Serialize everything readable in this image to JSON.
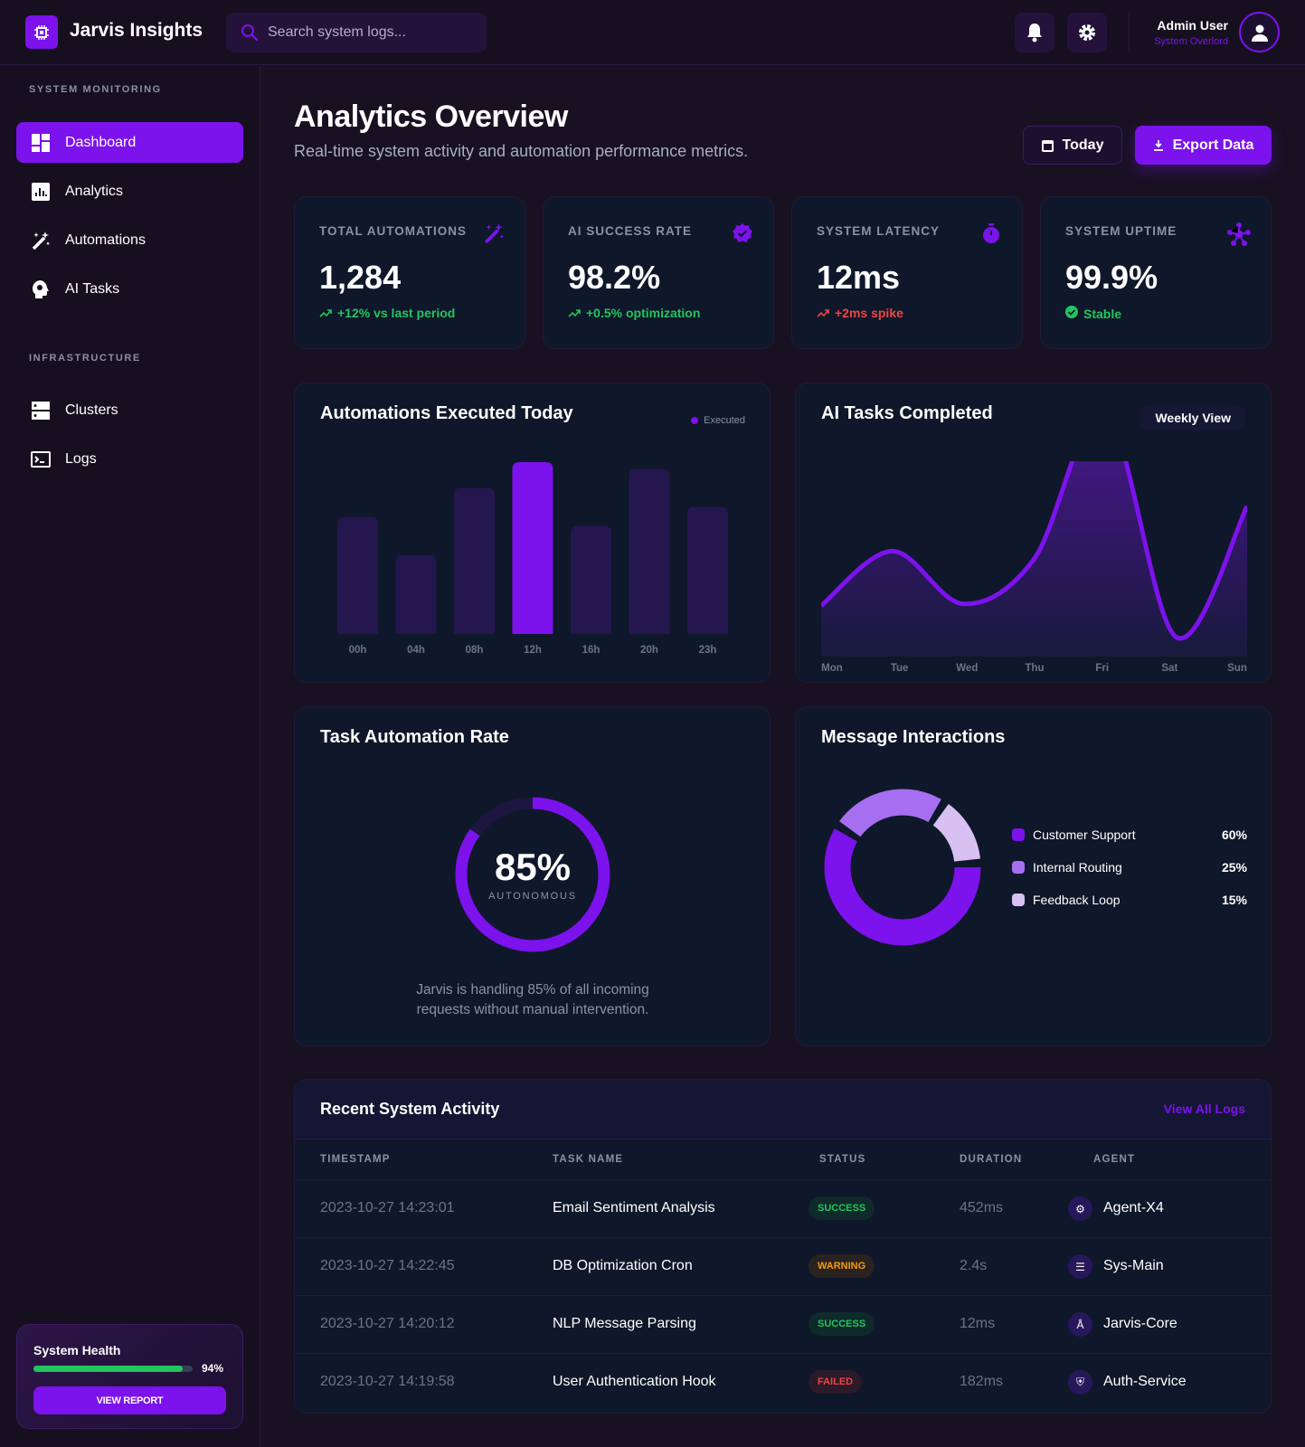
{
  "header": {
    "app_title": "Jarvis Insights",
    "search_placeholder": "Search system logs...",
    "user_name": "Admin User",
    "user_role": "System Overlord"
  },
  "sidebar": {
    "sections": [
      {
        "title": "SYSTEM MONITORING",
        "items": [
          {
            "label": "Dashboard",
            "icon": "dashboard-icon",
            "active": true
          },
          {
            "label": "Analytics",
            "icon": "analytics-icon"
          },
          {
            "label": "Automations",
            "icon": "magic-wand-icon"
          },
          {
            "label": "AI Tasks",
            "icon": "brain-icon"
          }
        ]
      },
      {
        "title": "INFRASTRUCTURE",
        "items": [
          {
            "label": "Clusters",
            "icon": "server-icon"
          },
          {
            "label": "Logs",
            "icon": "terminal-icon"
          }
        ]
      }
    ],
    "health": {
      "title": "System Health",
      "value_label": "94%",
      "value": 94,
      "button": "VIEW REPORT"
    }
  },
  "page": {
    "title": "Analytics Overview",
    "subtitle": "Real-time system activity and automation performance metrics.",
    "today_button": "Today",
    "export_button": "Export Data"
  },
  "stats": [
    {
      "label": "TOTAL AUTOMATIONS",
      "value": "1,284",
      "delta": "+12% vs last period",
      "trend": "up",
      "color": "#22c55e",
      "icon": "magic-wand-icon"
    },
    {
      "label": "AI SUCCESS RATE",
      "value": "98.2%",
      "delta": "+0.5% optimization",
      "trend": "up",
      "color": "#22c55e",
      "icon": "verified-badge-icon"
    },
    {
      "label": "SYSTEM LATENCY",
      "value": "12ms",
      "delta": "+2ms spike",
      "trend": "up",
      "color": "#ef4444",
      "icon": "timer-icon"
    },
    {
      "label": "SYSTEM UPTIME",
      "value": "99.9%",
      "delta": "Stable",
      "trend": "check",
      "color": "#22c55e",
      "icon": "hub-icon"
    }
  ],
  "colors": {
    "accent": "#7c12ec",
    "bar_muted": "#24174f",
    "success": "#22c55e",
    "warning": "#f59e0b",
    "danger": "#ef4444"
  },
  "chart_data": [
    {
      "type": "bar",
      "title": "Automations Executed Today",
      "legend": [
        "Executed"
      ],
      "categories": [
        "00h",
        "04h",
        "08h",
        "12h",
        "16h",
        "20h",
        "23h"
      ],
      "values": [
        68,
        46,
        85,
        100,
        63,
        96,
        74
      ],
      "highlight": "12h",
      "ylim": [
        0,
        100
      ]
    },
    {
      "type": "area",
      "title": "AI Tasks Completed",
      "view_selector": "Weekly View",
      "categories": [
        "Mon",
        "Tue",
        "Wed",
        "Thu",
        "Fri",
        "Sat",
        "Sun"
      ],
      "values": [
        26,
        54,
        27,
        50,
        125,
        10,
        77
      ],
      "ylim": [
        0,
        100
      ]
    },
    {
      "type": "gauge",
      "title": "Task Automation Rate",
      "value": 85,
      "value_label": "85%",
      "sublabel": "AUTONOMOUS",
      "caption": "Jarvis is handling 85% of all incoming requests without manual intervention."
    },
    {
      "type": "pie",
      "title": "Message Interactions",
      "slices": [
        {
          "name": "Customer Support",
          "value": 60,
          "label": "60%",
          "color": "#7c12ec"
        },
        {
          "name": "Internal Routing",
          "value": 25,
          "label": "25%",
          "color": "#a66ef0"
        },
        {
          "name": "Feedback Loop",
          "value": 15,
          "label": "15%",
          "color": "#d8c0f2"
        }
      ]
    }
  ],
  "activity": {
    "title": "Recent System Activity",
    "view_all": "View All Logs",
    "columns": [
      "TIMESTAMP",
      "TASK NAME",
      "STATUS",
      "DURATION",
      "AGENT"
    ],
    "rows": [
      {
        "timestamp": "2023-10-27 14:23:01",
        "task": "Email Sentiment Analysis",
        "status": "SUCCESS",
        "duration": "452ms",
        "agent": "Agent-X4",
        "agent_icon": "robot-icon"
      },
      {
        "timestamp": "2023-10-27 14:22:45",
        "task": "DB Optimization Cron",
        "status": "WARNING",
        "duration": "2.4s",
        "agent": "Sys-Main",
        "agent_icon": "database-icon"
      },
      {
        "timestamp": "2023-10-27 14:20:12",
        "task": "NLP Message Parsing",
        "status": "SUCCESS",
        "duration": "12ms",
        "agent": "Jarvis-Core",
        "agent_icon": "translate-icon"
      },
      {
        "timestamp": "2023-10-27 14:19:58",
        "task": "User Authentication Hook",
        "status": "FAILED",
        "duration": "182ms",
        "agent": "Auth-Service",
        "agent_icon": "shield-icon"
      }
    ]
  }
}
